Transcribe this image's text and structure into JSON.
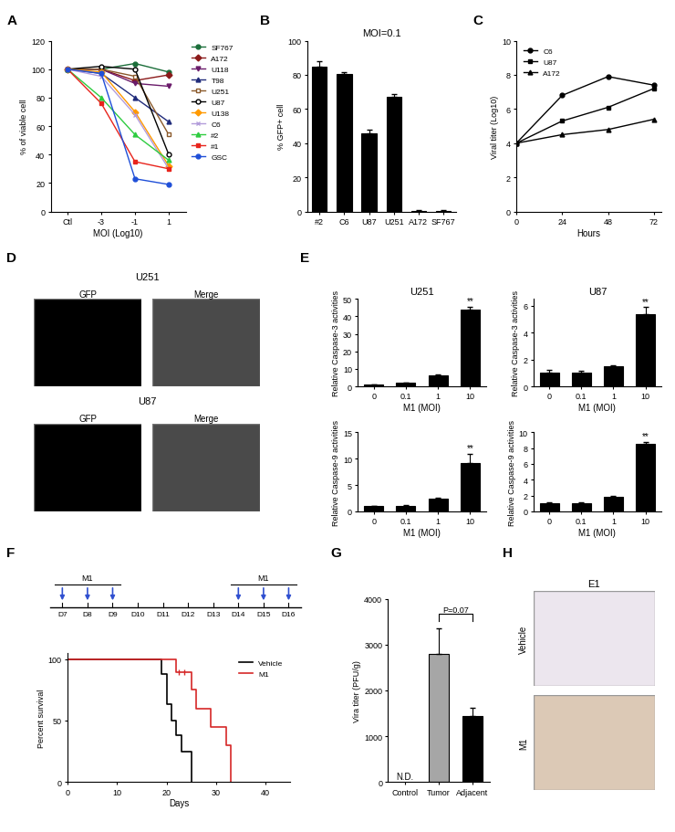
{
  "chart_data": [
    {
      "panel": "A",
      "type": "line",
      "categories": [
        "Ctl",
        "-3",
        "-1",
        "1"
      ],
      "x_label": "MOI (Log10)",
      "y_label": "% of viable cell",
      "ylim": [
        0,
        120
      ],
      "yticks": [
        0,
        20,
        40,
        60,
        80,
        100,
        120
      ],
      "legend": "right",
      "series": [
        {
          "name": "SF767",
          "color": "#1b6e3a",
          "marker": "circle",
          "values": [
            100,
            100,
            104,
            98
          ]
        },
        {
          "name": "A172",
          "color": "#8b1a1a",
          "marker": "diamond",
          "values": [
            100,
            100,
            92,
            96
          ]
        },
        {
          "name": "U118",
          "color": "#6a1b6a",
          "marker": "triangle_down",
          "values": [
            100,
            100,
            90,
            88
          ]
        },
        {
          "name": "T98",
          "color": "#1f2a7a",
          "marker": "triangle_up",
          "values": [
            100,
            97,
            80,
            63
          ]
        },
        {
          "name": "U251",
          "color": "#8b5a2b",
          "marker": "square_open",
          "values": [
            100,
            100,
            95,
            54
          ]
        },
        {
          "name": "U87",
          "color": "#000000",
          "marker": "circle_open",
          "values": [
            100,
            102,
            100,
            40
          ]
        },
        {
          "name": "U138",
          "color": "#ff9900",
          "marker": "diamond",
          "values": [
            100,
            98,
            70,
            32
          ]
        },
        {
          "name": "C6",
          "color": "#b39ddb",
          "marker": "cross",
          "values": [
            100,
            95,
            68,
            30
          ]
        },
        {
          "name": "#2",
          "color": "#2ecc40",
          "marker": "triangle_up",
          "values": [
            100,
            80,
            54,
            36
          ]
        },
        {
          "name": "#1",
          "color": "#e8241c",
          "marker": "square",
          "values": [
            100,
            76,
            35,
            30
          ]
        },
        {
          "name": "GSC",
          "color": "#1f4fd8",
          "marker": "circle",
          "values": [
            100,
            97,
            23,
            19
          ]
        }
      ]
    },
    {
      "panel": "B",
      "type": "bar",
      "title": "MOI=0.1",
      "categories": [
        "#2",
        "C6",
        "U87",
        "U251",
        "A172",
        "SF767"
      ],
      "values": [
        85,
        80.5,
        46,
        67,
        0.5,
        0.5
      ],
      "errors": [
        3,
        1,
        2,
        2,
        0.3,
        0.3
      ],
      "color": "#000000",
      "y_label": "% GFP+ cell",
      "ylim": [
        0,
        100
      ],
      "yticks": [
        0,
        20,
        40,
        60,
        80,
        100
      ]
    },
    {
      "panel": "C",
      "type": "line",
      "x": [
        0,
        24,
        48,
        72
      ],
      "x_label": "Hours",
      "y_label": "Viral titer (Log10)",
      "xlim": [
        0,
        76
      ],
      "xticks": [
        0,
        24,
        48,
        72
      ],
      "ylim": [
        0,
        10
      ],
      "yticks": [
        0,
        2,
        4,
        6,
        8,
        10
      ],
      "legend": "upper left",
      "series": [
        {
          "name": "C6",
          "color": "#000000",
          "marker": "circle",
          "values": [
            4,
            6.8,
            7.9,
            7.4
          ]
        },
        {
          "name": "U87",
          "color": "#000000",
          "marker": "square",
          "values": [
            4,
            5.3,
            6.1,
            7.2
          ]
        },
        {
          "name": "A172",
          "color": "#000000",
          "marker": "triangle_up",
          "values": [
            4,
            4.5,
            4.8,
            5.4
          ]
        }
      ]
    },
    {
      "panel": "E",
      "type": "bar",
      "title": "U251",
      "categories": [
        "0",
        "0.1",
        "1",
        "10"
      ],
      "values": [
        1,
        2,
        6.5,
        44
      ],
      "errors": [
        0.2,
        0.3,
        0.5,
        1.5
      ],
      "color": "#000000",
      "x_label": "M1 (MOI)",
      "y_label": "Relative Caspase-3 activities",
      "ylim": [
        0,
        50
      ],
      "yticks": [
        0,
        10,
        20,
        30,
        40,
        50
      ],
      "annotations": [
        {
          "text": "**",
          "category": "10"
        }
      ]
    },
    {
      "type": "bar",
      "title": "U87",
      "categories": [
        "0",
        "0.1",
        "1",
        "10"
      ],
      "values": [
        1,
        1,
        1.5,
        5.4
      ],
      "errors": [
        0.2,
        0.15,
        0.1,
        0.5
      ],
      "color": "#000000",
      "x_label": "M1 (MOI)",
      "y_label": "Relative Caspase-3 activities",
      "ylim": [
        0,
        6.5
      ],
      "yticks": [
        0,
        2,
        4,
        6
      ],
      "annotations": [
        {
          "text": "**",
          "category": "10"
        }
      ]
    },
    {
      "type": "bar",
      "categories": [
        "0",
        "0.1",
        "1",
        "10"
      ],
      "values": [
        1,
        1.1,
        2.4,
        9.2
      ],
      "errors": [
        0.1,
        0.1,
        0.1,
        1.7
      ],
      "color": "#000000",
      "x_label": "M1 (MOI)",
      "y_label": "Relative Caspase-9 activities",
      "ylim": [
        0,
        15
      ],
      "yticks": [
        0,
        5,
        10,
        15
      ],
      "annotations": [
        {
          "text": "**",
          "category": "10"
        }
      ]
    },
    {
      "type": "bar",
      "categories": [
        "0",
        "0.1",
        "1",
        "10"
      ],
      "values": [
        1,
        1,
        1.8,
        8.5
      ],
      "errors": [
        0.1,
        0.1,
        0.1,
        0.3
      ],
      "color": "#000000",
      "x_label": "M1 (MOI)",
      "y_label": "Relative Caspase-9 activities",
      "ylim": [
        0,
        10
      ],
      "yticks": [
        0,
        2,
        4,
        6,
        8,
        10
      ],
      "annotations": [
        {
          "text": "**",
          "category": "10"
        }
      ]
    },
    {
      "type": "survival",
      "x_label": "Days",
      "y_label": "Percent survival",
      "xlim": [
        0,
        45
      ],
      "xticks": [
        0,
        10,
        20,
        30,
        40
      ],
      "ylim": [
        0,
        105
      ],
      "yticks": [
        0,
        50,
        100
      ],
      "legend": "upper right",
      "series": [
        {
          "name": "Vehicle",
          "color": "#000000",
          "x": [
            0,
            19,
            20,
            21,
            22,
            23,
            25
          ],
          "values": [
            100,
            88,
            63,
            50,
            38,
            25,
            0
          ]
        },
        {
          "name": "M1",
          "color": "#d62728",
          "x": [
            0,
            22,
            25,
            26,
            29,
            32,
            33
          ],
          "values": [
            100,
            89,
            75,
            60,
            45,
            30,
            0
          ],
          "censored_x": [
            22.5,
            23.5
          ],
          "censored_values": [
            89,
            89
          ]
        }
      ]
    },
    {
      "panel": "G",
      "type": "bar",
      "categories": [
        "Control",
        "Tumor",
        "Adjacent"
      ],
      "values": [
        null,
        2800,
        1450
      ],
      "errors": [
        null,
        550,
        180
      ],
      "colors": [
        "#ffffff",
        "#a6a6a6",
        "#000000"
      ],
      "y_label": "Vira titer (PFU/g)",
      "ylim": [
        0,
        4000
      ],
      "yticks": [
        0,
        1000,
        2000,
        3000,
        4000
      ],
      "annotations": [
        {
          "text": "N.D.",
          "category": "Control"
        },
        {
          "text": "P=0.07",
          "between": [
            "Tumor",
            "Adjacent"
          ]
        }
      ]
    }
  ],
  "diagram": {
    "panel": "F",
    "days": [
      "D7",
      "D8",
      "D9",
      "D10",
      "D11",
      "D12",
      "D13",
      "D14",
      "D15",
      "D16"
    ],
    "treatment": "M1",
    "treatment_days": [
      [
        "D7",
        "D8",
        "D9"
      ],
      [
        "D14",
        "D15",
        "D16"
      ]
    ]
  },
  "images": [
    {
      "panel": "D",
      "rows": [
        {
          "label": "U251",
          "columns": [
            "GFP",
            "Merge"
          ]
        },
        {
          "label": "U87",
          "columns": [
            "GFP",
            "Merge"
          ]
        }
      ]
    },
    {
      "panel": "H",
      "title": "E1",
      "rows": [
        "Vehicle",
        "M1"
      ]
    }
  ]
}
